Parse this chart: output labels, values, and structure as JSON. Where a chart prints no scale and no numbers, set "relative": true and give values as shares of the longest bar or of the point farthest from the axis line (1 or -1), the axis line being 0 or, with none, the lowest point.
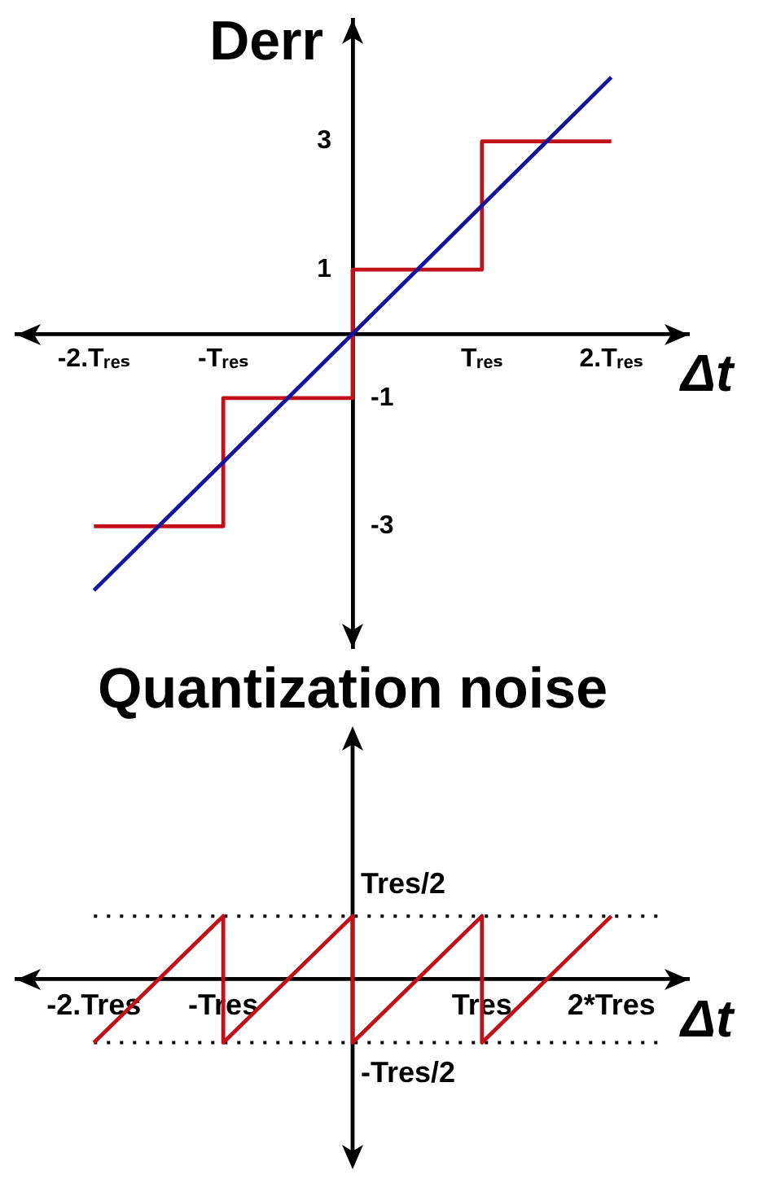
{
  "chart_data": [
    {
      "type": "line",
      "ylabel": "Derr",
      "xlabel": "Δt",
      "series": [
        {
          "type": "step",
          "color": "#c0101a",
          "x": [
            -2,
            -1,
            0,
            1,
            2
          ],
          "values": [
            -3,
            -1,
            1,
            3,
            3
          ]
        },
        {
          "type": "line",
          "color": "#14149a",
          "x": [
            -2,
            2
          ],
          "values": [
            -4,
            4
          ]
        }
      ],
      "xlim": [
        -2.6,
        2.6
      ],
      "xticks": [
        {
          "value": -2,
          "label": "-2.Tᵣₑₛ"
        },
        {
          "value": -1,
          "label": "-Tᵣₑₛ"
        },
        {
          "value": 1,
          "label": "Tᵣₑₛ"
        },
        {
          "value": 2,
          "label": "2.Tᵣₑₛ"
        }
      ],
      "ylim": [
        -4.9,
        4.9
      ],
      "yticks": [
        1,
        3
      ],
      "y2lim": [
        -4.9,
        4.9
      ],
      "y2ticks": [
        -3,
        -1
      ]
    },
    {
      "type": "line",
      "title": "Quantization noise",
      "xlabel": "Δt",
      "relative": true,
      "series": [
        {
          "color": "#c0101a",
          "x": [
            -2,
            -1,
            -1,
            0,
            0,
            1,
            1,
            2
          ],
          "values": [
            -1,
            1,
            -1,
            1,
            -1,
            1,
            -1,
            1
          ]
        }
      ],
      "xlim": [
        -2.6,
        2.6
      ],
      "xticks": [
        {
          "value": -2,
          "label": "-2.Tres"
        },
        {
          "value": -1,
          "label": "-Tres"
        },
        {
          "value": 1,
          "label": "Tres"
        },
        {
          "value": 2,
          "label": "2*Tres"
        }
      ],
      "ref_lines": [
        {
          "axis": "y",
          "value": 1,
          "label": "Tres/2",
          "color": "#000000",
          "line_style": "dotted"
        },
        {
          "axis": "y",
          "value": -1,
          "label": "-Tres/2",
          "color": "#000000",
          "line_style": "dotted"
        }
      ]
    }
  ]
}
